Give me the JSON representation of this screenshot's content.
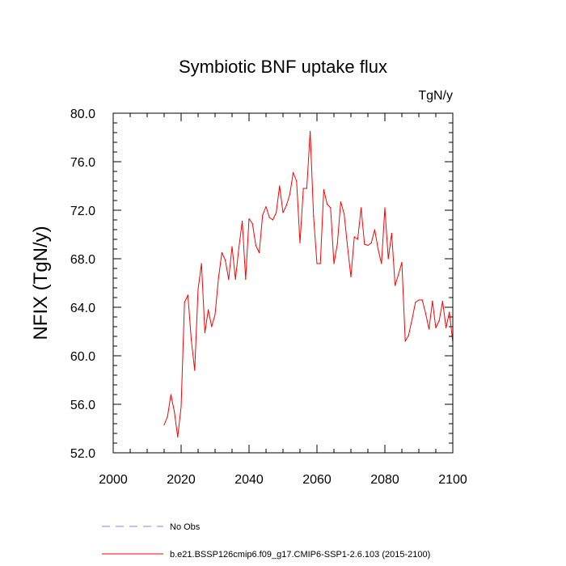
{
  "chart_data": {
    "type": "line",
    "title": "Symbiotic BNF uptake flux",
    "units_label": "TgN/y",
    "xlabel": "",
    "ylabel": "NFIX  (TgN/y)",
    "xlim": [
      2000,
      2100
    ],
    "ylim": [
      52,
      80
    ],
    "x_ticks": [
      2000,
      2020,
      2040,
      2060,
      2080,
      2100
    ],
    "x_tick_labels": [
      "2000",
      "2020",
      "2040",
      "2060",
      "2080",
      "2100"
    ],
    "y_ticks": [
      52,
      56,
      60,
      64,
      68,
      72,
      76,
      80
    ],
    "y_tick_labels": [
      "52.0",
      "56.0",
      "60.0",
      "64.0",
      "68.0",
      "72.0",
      "76.0",
      "80.0"
    ],
    "legend": [
      {
        "label": "No Obs",
        "color": "#8080ff",
        "style": "dashed"
      },
      {
        "label": "b.e21.BSSP126cmip6.f09_g17.CMIP6-SSP1-2.6.103 (2015-2100)",
        "color": "#ff0000",
        "style": "solid"
      }
    ],
    "series": [
      {
        "name": "b.e21.BSSP126cmip6.f09_g17.CMIP6-SSP1-2.6.103 (2015-2100)",
        "color": "#ff0000",
        "x": [
          2015,
          2016,
          2017,
          2018,
          2019,
          2020,
          2021,
          2022,
          2023,
          2024,
          2025,
          2026,
          2027,
          2028,
          2029,
          2030,
          2031,
          2032,
          2033,
          2034,
          2035,
          2036,
          2037,
          2038,
          2039,
          2040,
          2041,
          2042,
          2043,
          2044,
          2045,
          2046,
          2047,
          2048,
          2049,
          2050,
          2051,
          2052,
          2053,
          2054,
          2055,
          2056,
          2057,
          2058,
          2059,
          2060,
          2061,
          2062,
          2063,
          2064,
          2065,
          2066,
          2067,
          2068,
          2069,
          2070,
          2071,
          2072,
          2073,
          2074,
          2075,
          2076,
          2077,
          2078,
          2079,
          2080,
          2081,
          2082,
          2083,
          2084,
          2085,
          2086,
          2087,
          2088,
          2089,
          2090,
          2091,
          2092,
          2093,
          2094,
          2095,
          2096,
          2097,
          2098,
          2099,
          2100
        ],
        "values": [
          54.3,
          55.0,
          56.8,
          55.4,
          53.3,
          55.8,
          64.4,
          65.0,
          61.3,
          58.8,
          65.5,
          67.6,
          61.9,
          63.8,
          62.4,
          63.4,
          66.4,
          68.5,
          67.9,
          66.3,
          69.0,
          66.3,
          68.9,
          71.1,
          66.3,
          71.3,
          70.9,
          69.1,
          68.5,
          71.6,
          72.3,
          71.4,
          71.2,
          71.8,
          74.0,
          71.8,
          72.4,
          73.3,
          75.1,
          74.4,
          69.3,
          73.8,
          73.8,
          78.5,
          71.5,
          67.6,
          67.6,
          73.7,
          72.5,
          72.2,
          67.6,
          69.2,
          72.7,
          71.7,
          69.0,
          66.5,
          69.8,
          69.6,
          72.2,
          69.2,
          69.1,
          69.3,
          70.4,
          68.8,
          67.6,
          72.2,
          68.0,
          70.1,
          65.8,
          66.7,
          67.7,
          61.2,
          61.7,
          63.0,
          64.4,
          64.6,
          64.6,
          63.5,
          62.2,
          64.5,
          62.3,
          62.9,
          64.5,
          62.3,
          63.6,
          61.1
        ]
      }
    ]
  }
}
